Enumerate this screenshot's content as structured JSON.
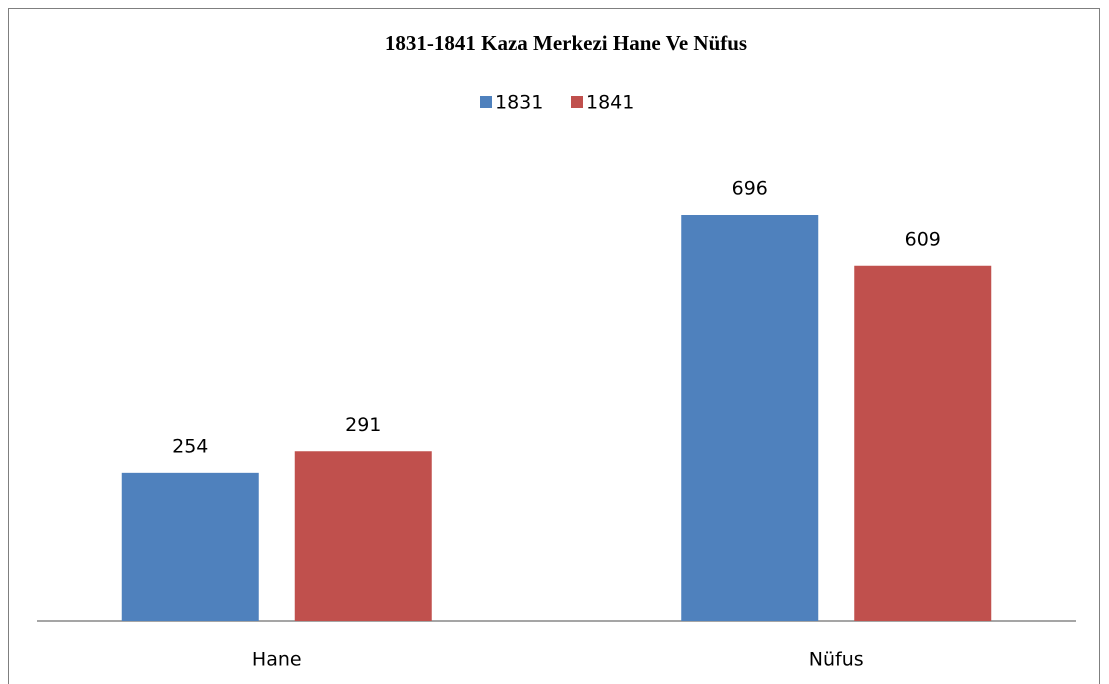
{
  "chart_data": {
    "type": "bar",
    "title": "1831-1841 Kaza Merkezi Hane Ve Nüfus",
    "categories": [
      "Hane",
      "Nüfus"
    ],
    "series": [
      {
        "name": "1831",
        "color": "#4f81bd",
        "values": [
          254,
          696
        ]
      },
      {
        "name": "1841",
        "color": "#c0504d",
        "values": [
          291,
          609
        ]
      }
    ],
    "legend": "top"
  }
}
